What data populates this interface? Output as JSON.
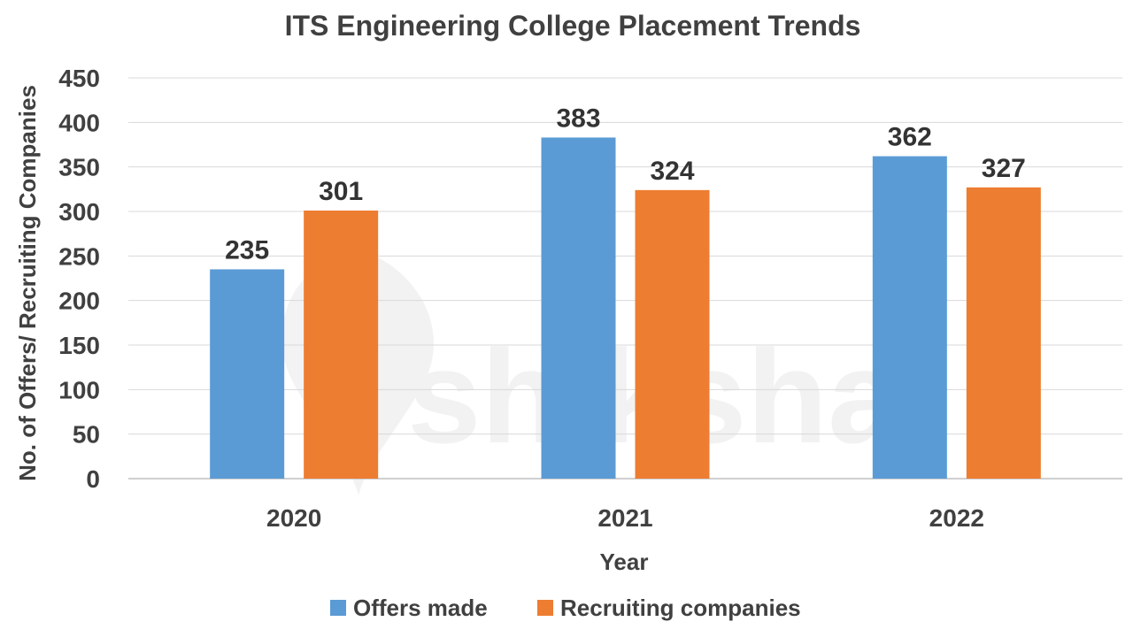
{
  "chart_data": {
    "type": "bar",
    "title": "ITS Engineering College Placement Trends",
    "xlabel": "Year",
    "ylabel": "No. of Offers/ Recruiting Companies",
    "categories": [
      "2020",
      "2021",
      "2022"
    ],
    "series": [
      {
        "name": "Offers made",
        "values": [
          235,
          383,
          362
        ],
        "color": "#5b9bd5"
      },
      {
        "name": "Recruiting companies",
        "values": [
          301,
          324,
          327
        ],
        "color": "#ed7d31"
      }
    ],
    "ylim": [
      0,
      450
    ],
    "yticks": [
      0,
      50,
      100,
      150,
      200,
      250,
      300,
      350,
      400,
      450
    ],
    "grid": true,
    "legend_position": "bottom"
  },
  "watermark": {
    "text": "shiksha"
  }
}
